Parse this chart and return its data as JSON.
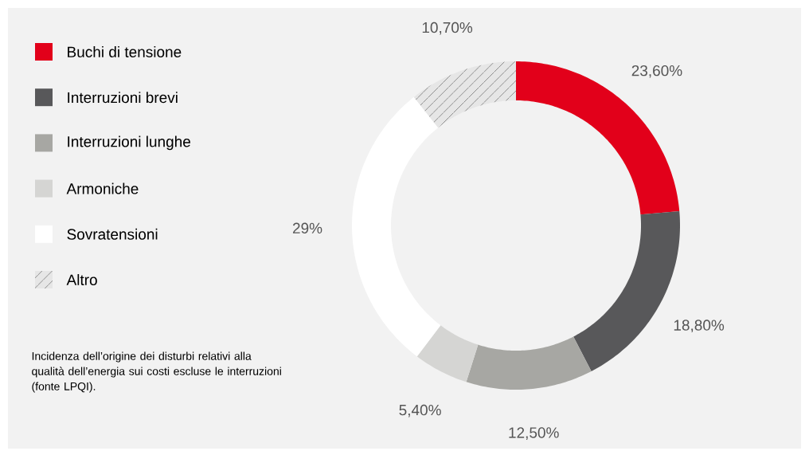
{
  "chart_data": {
    "type": "donut",
    "categories": [
      "Buchi di tensione",
      "Interruzioni brevi",
      "Interruzioni lunghe",
      "Armoniche",
      "Sovratensioni",
      "Altro"
    ],
    "values": [
      23.6,
      18.8,
      12.5,
      5.4,
      29,
      10.7
    ],
    "colors": [
      "#e2001a",
      "#58585a",
      "#a7a7a3",
      "#d5d5d3",
      "#ffffff",
      "#e6e6e6"
    ],
    "value_labels": [
      "23,60%",
      "18,80%",
      "12,50%",
      "5,40%",
      "29%",
      "10,70%"
    ],
    "legend": "left",
    "annotations": [
      "Incidenza dell’origine dei disturbi relativi alla qualità dell’energia sui costi escluse le interruzioni (fonte LPQI)."
    ]
  }
}
